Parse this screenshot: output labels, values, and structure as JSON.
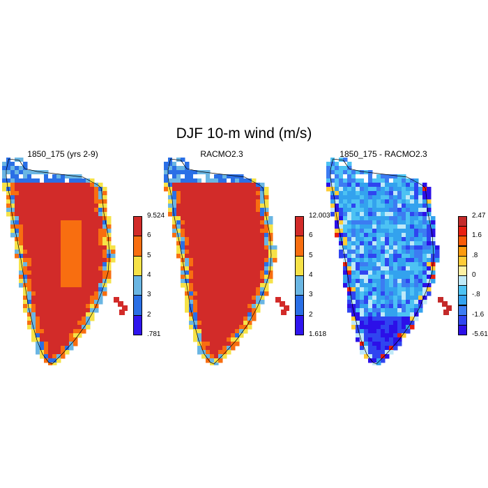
{
  "figure": {
    "title": "DJF 10-m wind (m/s)"
  },
  "panels": [
    {
      "title": "1850_175 (yrs 2-9)",
      "colorbar": {
        "colors": [
          "#2f15ef",
          "#2a6fe6",
          "#6ab6e3",
          "#f6e247",
          "#f86e10",
          "#d22b29"
        ],
        "labels": [
          ".781",
          "2",
          "3",
          "4",
          "5",
          "6",
          "9.524"
        ]
      }
    },
    {
      "title": "RACMO2.3",
      "colorbar": {
        "colors": [
          "#2f15ef",
          "#2a6fe6",
          "#6ab6e3",
          "#f6e247",
          "#f86e10",
          "#d22b29"
        ],
        "labels": [
          "1.618",
          "2",
          "3",
          "4",
          "5",
          "6",
          "12.003"
        ]
      }
    },
    {
      "title": "1850_175 - RACMO2.3",
      "colorbar": {
        "colors": [
          "#2c10e8",
          "#2f45f0",
          "#3c7cf2",
          "#33a2ee",
          "#4dc2f3",
          "#bfe9f8",
          "#fdf0a3",
          "#fecb36",
          "#fd9a0c",
          "#f85a06",
          "#e81f10",
          "#c42a2a"
        ],
        "labels": [
          "-5.618",
          "-1.6",
          "-.8",
          "0",
          ".8",
          "1.6",
          "2.47"
        ],
        "label_rows": [
          0,
          2,
          4,
          6,
          8,
          10,
          12
        ]
      }
    }
  ]
}
